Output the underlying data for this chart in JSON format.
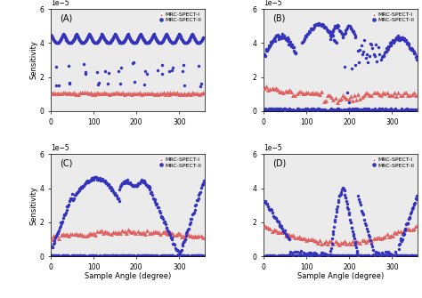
{
  "panels": [
    "(A)",
    "(B)",
    "(C)",
    "(D)"
  ],
  "xlim": [
    0,
    360
  ],
  "ylim": [
    0,
    6e-05
  ],
  "yticks": [
    0,
    2e-05,
    4e-05,
    6e-05
  ],
  "xticks": [
    0,
    100,
    200,
    300
  ],
  "xlabel": "Sample Angle (degree)",
  "ylabel": "Sensitivity",
  "color_spect1": "#e06060",
  "color_spect2": "#3333bb",
  "legend_labels": [
    "MRC-SPECT-I",
    "MRC-SPECT-II"
  ],
  "background_color": "#ebebeb"
}
